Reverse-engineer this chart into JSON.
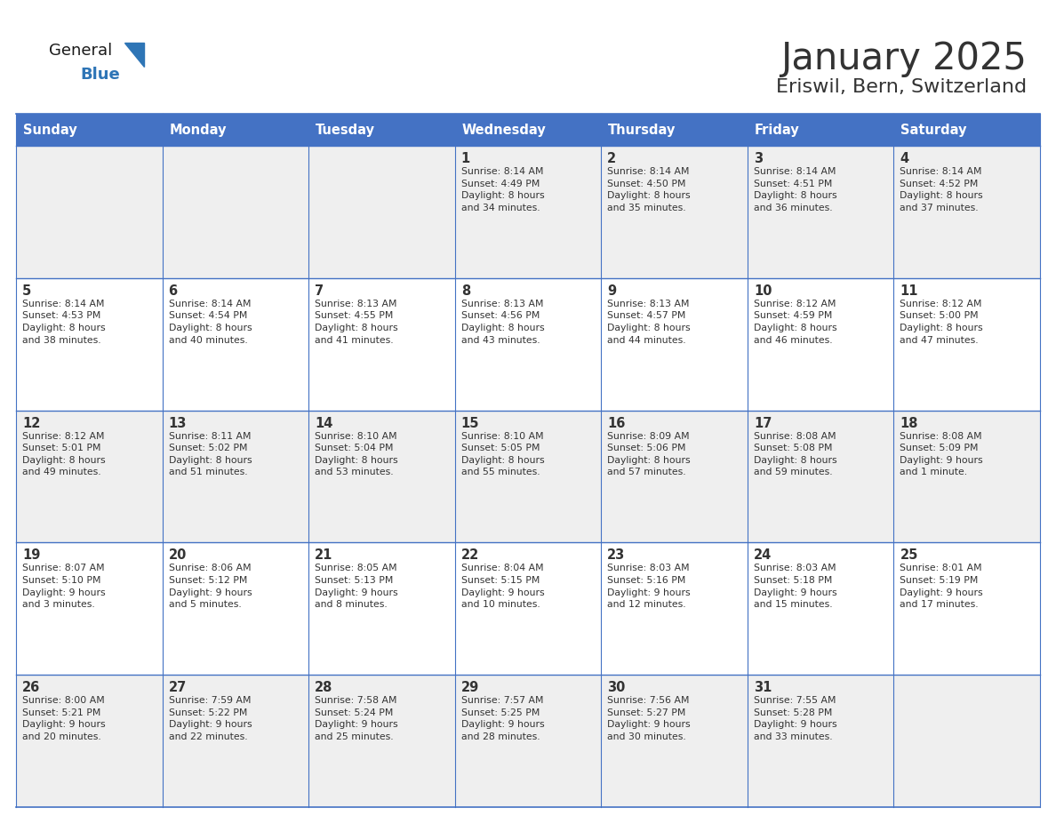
{
  "title": "January 2025",
  "subtitle": "Eriswil, Bern, Switzerland",
  "header_color": "#4472C4",
  "header_text_color": "#FFFFFF",
  "cell_bg_even": "#EFEFEF",
  "cell_bg_odd": "#FFFFFF",
  "border_color": "#4472C4",
  "text_color": "#333333",
  "days_of_week": [
    "Sunday",
    "Monday",
    "Tuesday",
    "Wednesday",
    "Thursday",
    "Friday",
    "Saturday"
  ],
  "weeks": [
    [
      {
        "day": "",
        "info": ""
      },
      {
        "day": "",
        "info": ""
      },
      {
        "day": "",
        "info": ""
      },
      {
        "day": "1",
        "info": "Sunrise: 8:14 AM\nSunset: 4:49 PM\nDaylight: 8 hours\nand 34 minutes."
      },
      {
        "day": "2",
        "info": "Sunrise: 8:14 AM\nSunset: 4:50 PM\nDaylight: 8 hours\nand 35 minutes."
      },
      {
        "day": "3",
        "info": "Sunrise: 8:14 AM\nSunset: 4:51 PM\nDaylight: 8 hours\nand 36 minutes."
      },
      {
        "day": "4",
        "info": "Sunrise: 8:14 AM\nSunset: 4:52 PM\nDaylight: 8 hours\nand 37 minutes."
      }
    ],
    [
      {
        "day": "5",
        "info": "Sunrise: 8:14 AM\nSunset: 4:53 PM\nDaylight: 8 hours\nand 38 minutes."
      },
      {
        "day": "6",
        "info": "Sunrise: 8:14 AM\nSunset: 4:54 PM\nDaylight: 8 hours\nand 40 minutes."
      },
      {
        "day": "7",
        "info": "Sunrise: 8:13 AM\nSunset: 4:55 PM\nDaylight: 8 hours\nand 41 minutes."
      },
      {
        "day": "8",
        "info": "Sunrise: 8:13 AM\nSunset: 4:56 PM\nDaylight: 8 hours\nand 43 minutes."
      },
      {
        "day": "9",
        "info": "Sunrise: 8:13 AM\nSunset: 4:57 PM\nDaylight: 8 hours\nand 44 minutes."
      },
      {
        "day": "10",
        "info": "Sunrise: 8:12 AM\nSunset: 4:59 PM\nDaylight: 8 hours\nand 46 minutes."
      },
      {
        "day": "11",
        "info": "Sunrise: 8:12 AM\nSunset: 5:00 PM\nDaylight: 8 hours\nand 47 minutes."
      }
    ],
    [
      {
        "day": "12",
        "info": "Sunrise: 8:12 AM\nSunset: 5:01 PM\nDaylight: 8 hours\nand 49 minutes."
      },
      {
        "day": "13",
        "info": "Sunrise: 8:11 AM\nSunset: 5:02 PM\nDaylight: 8 hours\nand 51 minutes."
      },
      {
        "day": "14",
        "info": "Sunrise: 8:10 AM\nSunset: 5:04 PM\nDaylight: 8 hours\nand 53 minutes."
      },
      {
        "day": "15",
        "info": "Sunrise: 8:10 AM\nSunset: 5:05 PM\nDaylight: 8 hours\nand 55 minutes."
      },
      {
        "day": "16",
        "info": "Sunrise: 8:09 AM\nSunset: 5:06 PM\nDaylight: 8 hours\nand 57 minutes."
      },
      {
        "day": "17",
        "info": "Sunrise: 8:08 AM\nSunset: 5:08 PM\nDaylight: 8 hours\nand 59 minutes."
      },
      {
        "day": "18",
        "info": "Sunrise: 8:08 AM\nSunset: 5:09 PM\nDaylight: 9 hours\nand 1 minute."
      }
    ],
    [
      {
        "day": "19",
        "info": "Sunrise: 8:07 AM\nSunset: 5:10 PM\nDaylight: 9 hours\nand 3 minutes."
      },
      {
        "day": "20",
        "info": "Sunrise: 8:06 AM\nSunset: 5:12 PM\nDaylight: 9 hours\nand 5 minutes."
      },
      {
        "day": "21",
        "info": "Sunrise: 8:05 AM\nSunset: 5:13 PM\nDaylight: 9 hours\nand 8 minutes."
      },
      {
        "day": "22",
        "info": "Sunrise: 8:04 AM\nSunset: 5:15 PM\nDaylight: 9 hours\nand 10 minutes."
      },
      {
        "day": "23",
        "info": "Sunrise: 8:03 AM\nSunset: 5:16 PM\nDaylight: 9 hours\nand 12 minutes."
      },
      {
        "day": "24",
        "info": "Sunrise: 8:03 AM\nSunset: 5:18 PM\nDaylight: 9 hours\nand 15 minutes."
      },
      {
        "day": "25",
        "info": "Sunrise: 8:01 AM\nSunset: 5:19 PM\nDaylight: 9 hours\nand 17 minutes."
      }
    ],
    [
      {
        "day": "26",
        "info": "Sunrise: 8:00 AM\nSunset: 5:21 PM\nDaylight: 9 hours\nand 20 minutes."
      },
      {
        "day": "27",
        "info": "Sunrise: 7:59 AM\nSunset: 5:22 PM\nDaylight: 9 hours\nand 22 minutes."
      },
      {
        "day": "28",
        "info": "Sunrise: 7:58 AM\nSunset: 5:24 PM\nDaylight: 9 hours\nand 25 minutes."
      },
      {
        "day": "29",
        "info": "Sunrise: 7:57 AM\nSunset: 5:25 PM\nDaylight: 9 hours\nand 28 minutes."
      },
      {
        "day": "30",
        "info": "Sunrise: 7:56 AM\nSunset: 5:27 PM\nDaylight: 9 hours\nand 30 minutes."
      },
      {
        "day": "31",
        "info": "Sunrise: 7:55 AM\nSunset: 5:28 PM\nDaylight: 9 hours\nand 33 minutes."
      },
      {
        "day": "",
        "info": ""
      }
    ]
  ],
  "logo_general_color": "#1a1a1a",
  "logo_blue_color": "#2E75B6",
  "logo_triangle_color": "#2E75B6"
}
